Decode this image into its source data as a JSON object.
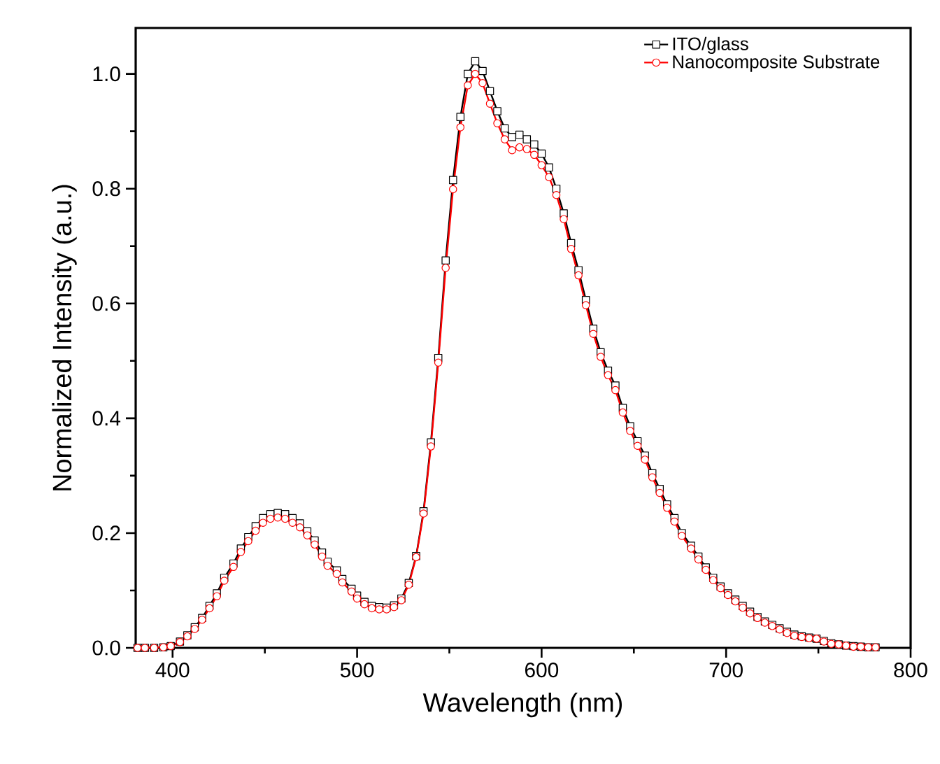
{
  "chart_data": {
    "type": "line",
    "xlabel": "Wavelength (nm)",
    "ylabel": "Normalized Intensity (a.u.)",
    "x": [
      381,
      385,
      390,
      395,
      399,
      404,
      408,
      412,
      416,
      420,
      424,
      428,
      433,
      437,
      441,
      445,
      449,
      453,
      457,
      461,
      465,
      469,
      473,
      477,
      481,
      484,
      489,
      492,
      497,
      500,
      504,
      508,
      512,
      516,
      520,
      524,
      528,
      532,
      536,
      540,
      544,
      548,
      552,
      556,
      560,
      564,
      568,
      572,
      576,
      580,
      584,
      588,
      592,
      596,
      600,
      604,
      608,
      612,
      616,
      620,
      624,
      628,
      632,
      636,
      640,
      644,
      648,
      652,
      656,
      660,
      664,
      668,
      672,
      676,
      681,
      685,
      689,
      693,
      697,
      701,
      705,
      709,
      713,
      717,
      721,
      725,
      729,
      733,
      737,
      741,
      745,
      749,
      753,
      757,
      761,
      765,
      769,
      773,
      777,
      781
    ],
    "series": [
      {
        "name": "ITO/glass",
        "color": "#000000",
        "marker": "square",
        "values": [
          0.0,
          0.0,
          0.0,
          0.001,
          0.003,
          0.011,
          0.022,
          0.036,
          0.052,
          0.073,
          0.095,
          0.122,
          0.147,
          0.173,
          0.193,
          0.212,
          0.226,
          0.233,
          0.235,
          0.233,
          0.226,
          0.217,
          0.203,
          0.187,
          0.166,
          0.15,
          0.135,
          0.12,
          0.103,
          0.091,
          0.08,
          0.073,
          0.071,
          0.07,
          0.074,
          0.086,
          0.113,
          0.16,
          0.238,
          0.358,
          0.505,
          0.675,
          0.815,
          0.925,
          1.0,
          1.022,
          1.005,
          0.97,
          0.935,
          0.905,
          0.89,
          0.894,
          0.886,
          0.877,
          0.861,
          0.837,
          0.8,
          0.757,
          0.705,
          0.658,
          0.606,
          0.556,
          0.515,
          0.483,
          0.457,
          0.418,
          0.386,
          0.36,
          0.335,
          0.304,
          0.277,
          0.25,
          0.226,
          0.2,
          0.178,
          0.159,
          0.14,
          0.122,
          0.107,
          0.095,
          0.084,
          0.073,
          0.063,
          0.054,
          0.046,
          0.04,
          0.034,
          0.028,
          0.023,
          0.02,
          0.018,
          0.016,
          0.012,
          0.008,
          0.006,
          0.004,
          0.003,
          0.002,
          0.001,
          0.001
        ]
      },
      {
        "name": "Nanocomposite Substrate",
        "color": "#ff0000",
        "marker": "circle",
        "values": [
          0.0,
          0.0,
          0.0,
          0.001,
          0.003,
          0.01,
          0.02,
          0.033,
          0.049,
          0.069,
          0.09,
          0.117,
          0.141,
          0.167,
          0.186,
          0.204,
          0.218,
          0.225,
          0.227,
          0.225,
          0.218,
          0.21,
          0.196,
          0.18,
          0.159,
          0.143,
          0.129,
          0.114,
          0.098,
          0.086,
          0.076,
          0.069,
          0.067,
          0.067,
          0.071,
          0.083,
          0.11,
          0.158,
          0.234,
          0.351,
          0.497,
          0.662,
          0.799,
          0.907,
          0.98,
          1.0,
          0.984,
          0.948,
          0.914,
          0.886,
          0.867,
          0.872,
          0.869,
          0.859,
          0.841,
          0.82,
          0.789,
          0.747,
          0.695,
          0.649,
          0.597,
          0.547,
          0.507,
          0.475,
          0.449,
          0.41,
          0.378,
          0.352,
          0.328,
          0.297,
          0.27,
          0.244,
          0.22,
          0.195,
          0.173,
          0.154,
          0.136,
          0.118,
          0.104,
          0.092,
          0.081,
          0.07,
          0.06,
          0.052,
          0.044,
          0.038,
          0.032,
          0.026,
          0.021,
          0.019,
          0.017,
          0.016,
          0.011,
          0.007,
          0.006,
          0.004,
          0.002,
          0.002,
          0.001,
          0.001
        ]
      }
    ],
    "xlim": [
      380,
      800
    ],
    "xticks": [
      400,
      500,
      600,
      700,
      800
    ],
    "ylim": [
      0,
      1.08
    ],
    "yticks": [
      {
        "value": 0,
        "label": "0.0"
      },
      {
        "value": 0.2,
        "label": "0.2"
      },
      {
        "value": 0.4,
        "label": "0.4"
      },
      {
        "value": 0.6,
        "label": "0.6"
      },
      {
        "value": 0.8,
        "label": "0.8"
      },
      {
        "value": 1.0,
        "label": "1.0"
      }
    ],
    "legend": "top right",
    "grid": false
  }
}
